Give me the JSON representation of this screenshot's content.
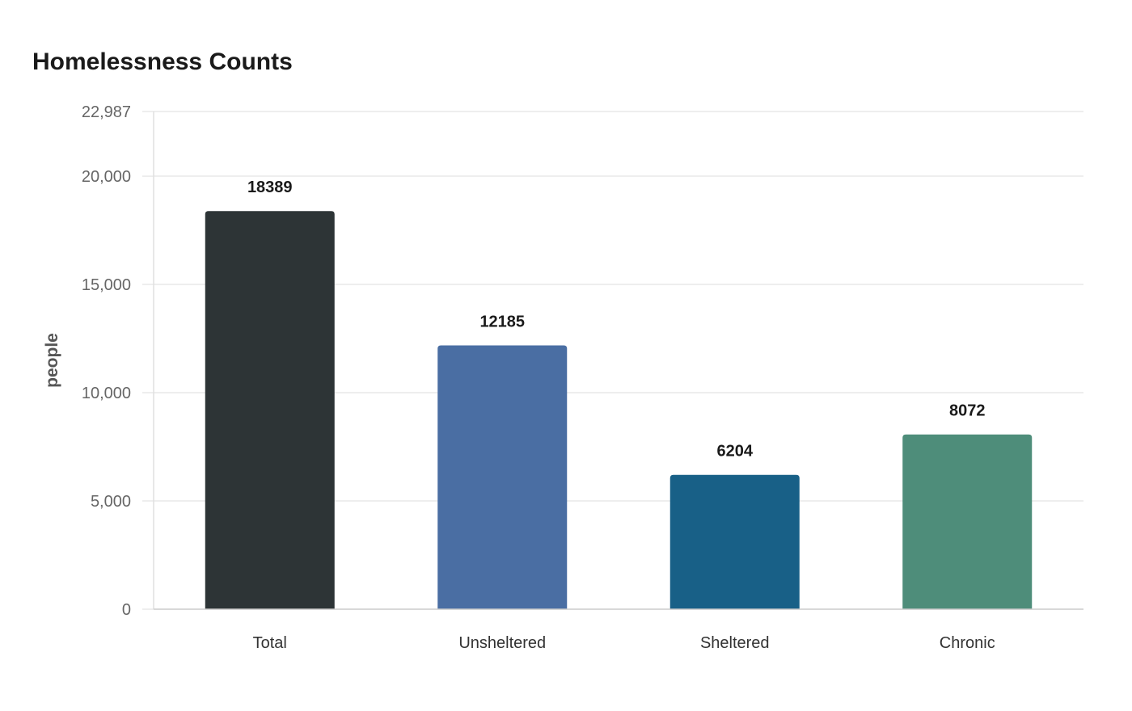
{
  "chart_data": {
    "type": "bar",
    "title": "Homelessness Counts",
    "xlabel": "",
    "ylabel": "people",
    "categories": [
      "Total",
      "Unsheltered",
      "Sheltered",
      "Chronic"
    ],
    "values": [
      18389,
      12185,
      6204,
      8072
    ],
    "data_labels": [
      "18389",
      "12185",
      "6204",
      "8072"
    ],
    "colors": [
      "#2d3436",
      "#4a6ea3",
      "#186087",
      "#4e8d7a"
    ],
    "ylim": [
      0,
      22987
    ],
    "yticks": [
      0,
      5000,
      10000,
      15000,
      20000,
      22987
    ],
    "ytick_labels": [
      "0",
      "5,000",
      "10,000",
      "15,000",
      "20,000",
      "22,987"
    ],
    "grid": true,
    "legend": "none"
  }
}
